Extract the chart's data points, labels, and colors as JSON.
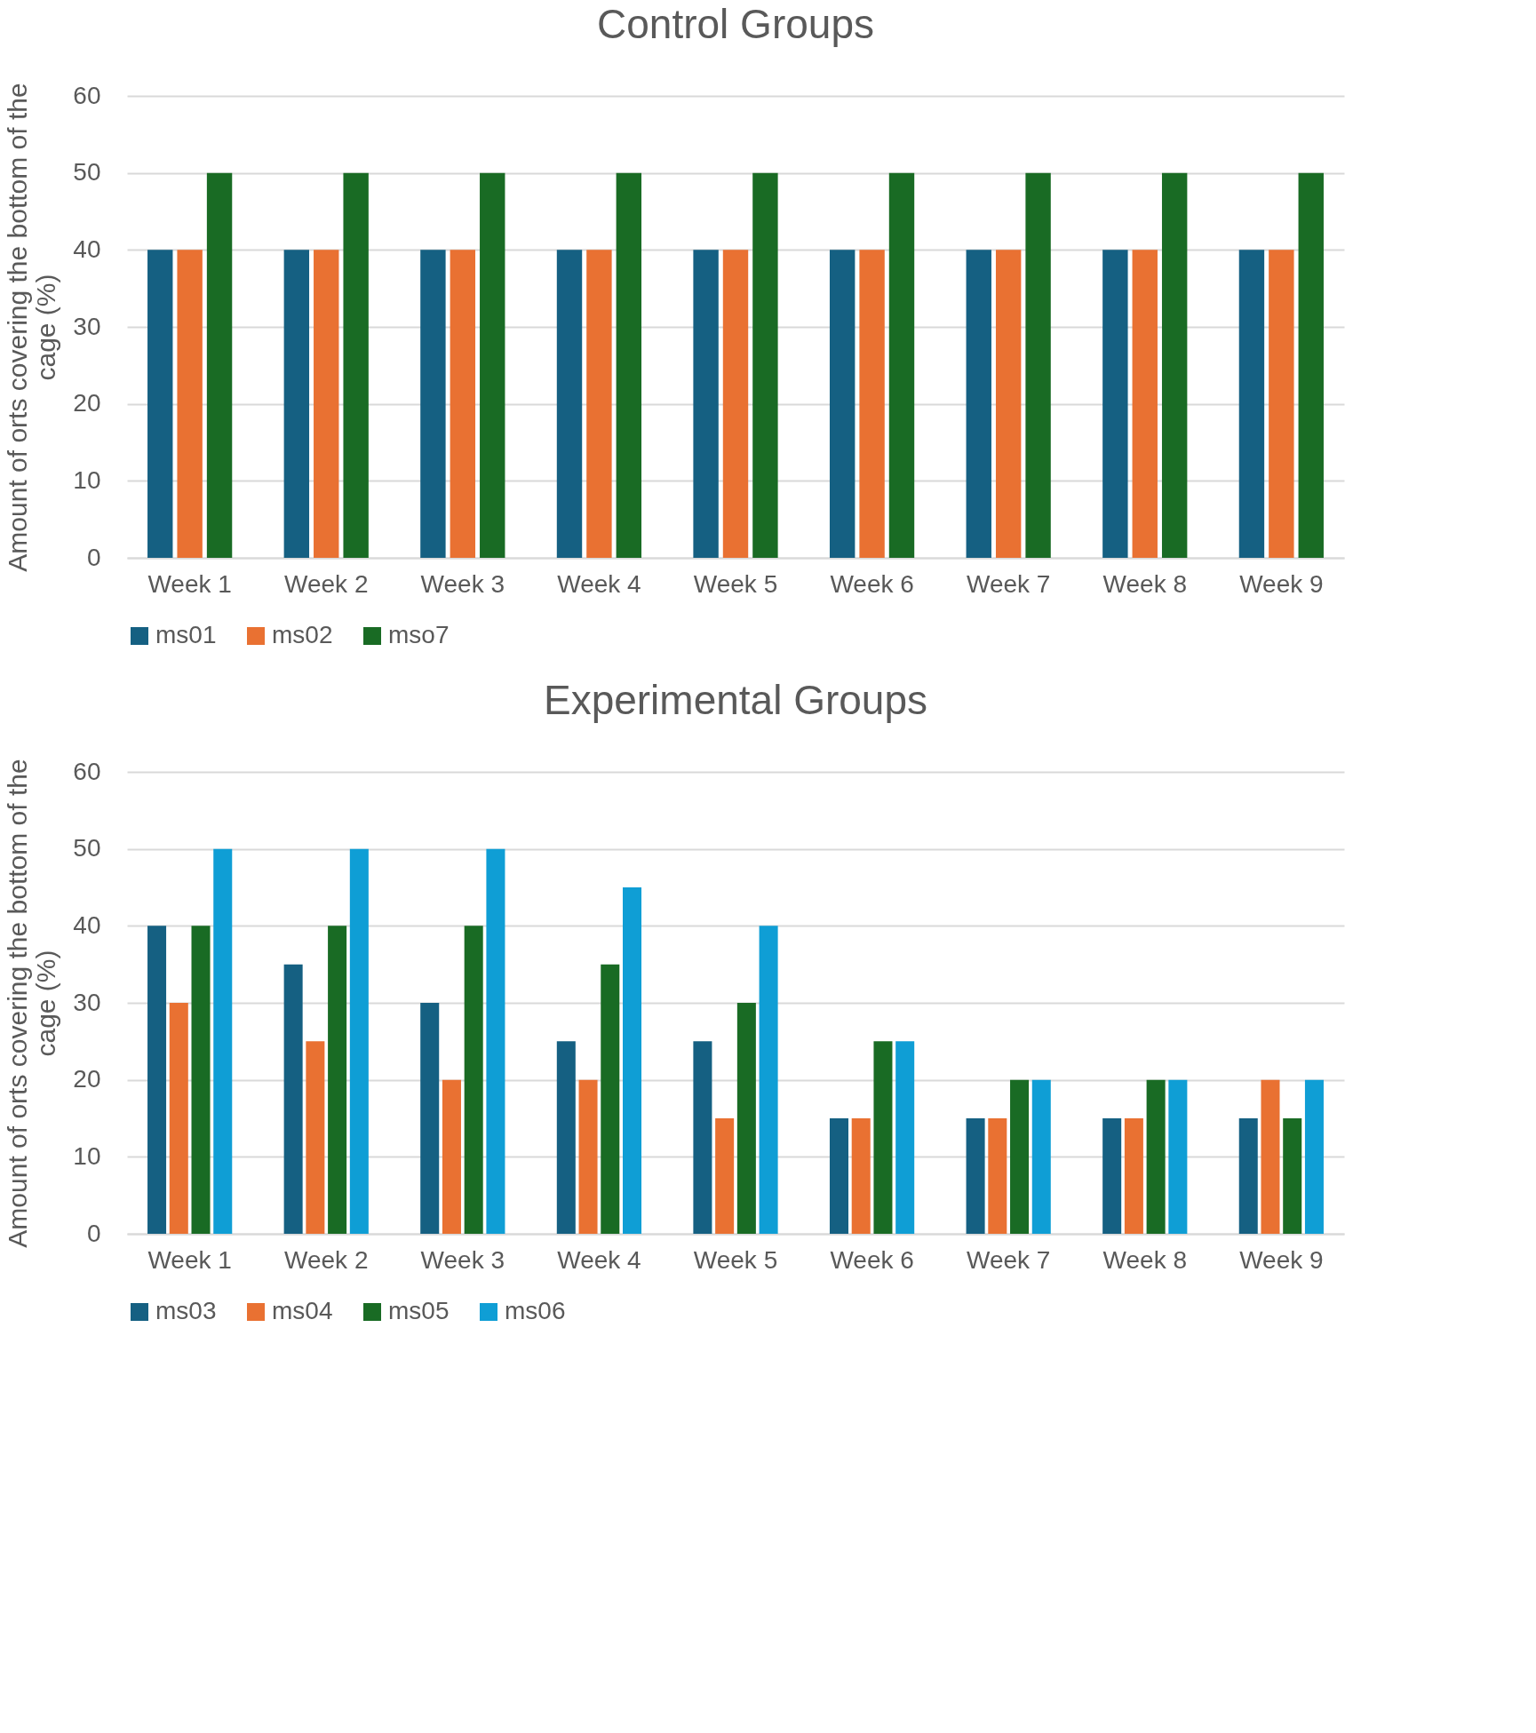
{
  "chart_data": [
    {
      "type": "bar",
      "title": "Control Groups",
      "ylabel": "Amount of orts covering the bottom of the cage (%)",
      "categories": [
        "Week 1",
        "Week 2",
        "Week 3",
        "Week 4",
        "Week 5",
        "Week 6",
        "Week 7",
        "Week 8",
        "Week 9"
      ],
      "series": [
        {
          "name": "ms01",
          "color": "#156082",
          "values": [
            40,
            40,
            40,
            40,
            40,
            40,
            40,
            40,
            40
          ]
        },
        {
          "name": "ms02",
          "color": "#e97132",
          "values": [
            40,
            40,
            40,
            40,
            40,
            40,
            40,
            40,
            40
          ]
        },
        {
          "name": "mso7",
          "color": "#196b24",
          "values": [
            50,
            50,
            50,
            50,
            50,
            50,
            50,
            50,
            50
          ]
        }
      ],
      "ylim": [
        0,
        60
      ],
      "yticks": [
        0,
        10,
        20,
        30,
        40,
        50,
        60
      ],
      "grid": "y",
      "legend": "bottom"
    },
    {
      "type": "bar",
      "title": "Experimental Groups",
      "ylabel": "Amount of orts covering the bottom of the cage (%)",
      "categories": [
        "Week 1",
        "Week 2",
        "Week 3",
        "Week 4",
        "Week 5",
        "Week 6",
        "Week 7",
        "Week 8",
        "Week 9"
      ],
      "series": [
        {
          "name": "ms03",
          "color": "#156082",
          "values": [
            40,
            35,
            30,
            25,
            25,
            15,
            15,
            15,
            15
          ]
        },
        {
          "name": "ms04",
          "color": "#e97132",
          "values": [
            30,
            25,
            20,
            20,
            15,
            15,
            15,
            15,
            20
          ]
        },
        {
          "name": "ms05",
          "color": "#196b24",
          "values": [
            40,
            40,
            40,
            35,
            30,
            25,
            20,
            20,
            15
          ]
        },
        {
          "name": "ms06",
          "color": "#0f9ed5",
          "values": [
            50,
            50,
            50,
            45,
            40,
            25,
            20,
            20,
            20
          ]
        }
      ],
      "ylim": [
        0,
        60
      ],
      "yticks": [
        0,
        10,
        20,
        30,
        40,
        50,
        60
      ],
      "grid": "y",
      "legend": "bottom"
    }
  ]
}
